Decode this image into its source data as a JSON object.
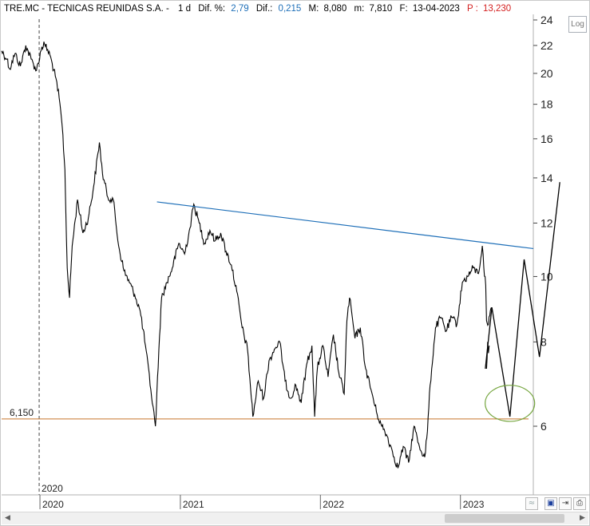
{
  "header": {
    "ticker": "TRE.MC - TECNICAS REUNIDAS S.A. -",
    "period": "1 d",
    "dif_pct_label": "Dif. %:",
    "dif_pct_value": "2,79",
    "dif_label": "Dif.:",
    "dif_value": "0,215",
    "max_label": "M:",
    "max_value": "8,080",
    "min_label": "m:",
    "min_value": "7,810",
    "date_label": "F:",
    "date_value": "13-04-2023",
    "price_label": "P :",
    "price_value": "13,230"
  },
  "toolbar": {
    "log_label": "Log"
  },
  "colors": {
    "price": "#000000",
    "trendline": "#1e6fb8",
    "support": "#c8742a",
    "ellipse": "#76a640",
    "accent_blue": "#1e6fb8",
    "accent_red": "#d42020"
  },
  "chart_data": {
    "type": "line",
    "y_scale": "log",
    "ylim": [
      5.0,
      24.5
    ],
    "y_ticks": [
      6,
      8,
      10,
      12,
      14,
      16,
      18,
      20,
      22,
      24
    ],
    "x_range": [
      "2019-09-23",
      "2023-07-10"
    ],
    "x_ticks": [
      "2020",
      "2021",
      "2022",
      "2023"
    ],
    "x_tick_dates": [
      "2020-01-01",
      "2021-01-01",
      "2022-01-01",
      "2023-01-01"
    ],
    "cursor_label": "2020",
    "support_level": {
      "value": 6.15,
      "label": "6,150"
    },
    "trendline": {
      "points": [
        [
          "2020-11-01",
          12.9
        ],
        [
          "2023-07-10",
          11.0
        ]
      ]
    },
    "projection": {
      "points": [
        [
          "2023-03-07",
          7.3
        ],
        [
          "2023-03-24",
          9.0
        ],
        [
          "2023-05-10",
          6.2
        ],
        [
          "2023-06-16",
          10.6
        ],
        [
          "2023-07-26",
          7.6
        ],
        [
          "2023-09-17",
          13.8
        ]
      ]
    },
    "target_zone": {
      "center": [
        "2023-05-10",
        6.5
      ],
      "price_low": 6.1,
      "price_high": 6.9
    },
    "series": [
      {
        "values": [
          [
            "2019-09-23",
            21.6
          ],
          [
            "2019-10-07",
            21.0
          ],
          [
            "2019-10-14",
            20.3
          ],
          [
            "2019-10-28",
            21.4
          ],
          [
            "2019-11-11",
            20.5
          ],
          [
            "2019-11-25",
            22.0
          ],
          [
            "2019-12-09",
            21.0
          ],
          [
            "2019-12-23",
            20.2
          ],
          [
            "2020-01-06",
            21.9
          ],
          [
            "2020-01-13",
            22.1
          ],
          [
            "2020-01-27",
            21.3
          ],
          [
            "2020-02-10",
            19.8
          ],
          [
            "2020-02-20",
            18.4
          ],
          [
            "2020-02-28",
            16.7
          ],
          [
            "2020-03-06",
            14.4
          ],
          [
            "2020-03-12",
            10.3
          ],
          [
            "2020-03-18",
            9.3
          ],
          [
            "2020-03-25",
            11.1
          ],
          [
            "2020-04-08",
            13.0
          ],
          [
            "2020-04-22",
            11.6
          ],
          [
            "2020-05-06",
            12.2
          ],
          [
            "2020-05-20",
            13.6
          ],
          [
            "2020-06-04",
            15.8
          ],
          [
            "2020-06-12",
            14.2
          ],
          [
            "2020-06-26",
            13.1
          ],
          [
            "2020-07-10",
            13.0
          ],
          [
            "2020-07-24",
            11.1
          ],
          [
            "2020-08-07",
            10.2
          ],
          [
            "2020-08-21",
            9.8
          ],
          [
            "2020-09-04",
            9.4
          ],
          [
            "2020-09-18",
            8.9
          ],
          [
            "2020-10-02",
            7.9
          ],
          [
            "2020-10-16",
            6.8
          ],
          [
            "2020-10-28",
            6.0
          ],
          [
            "2020-11-06",
            7.8
          ],
          [
            "2020-11-13",
            9.3
          ],
          [
            "2020-11-27",
            9.8
          ],
          [
            "2020-12-11",
            10.3
          ],
          [
            "2020-12-28",
            11.2
          ],
          [
            "2021-01-12",
            10.8
          ],
          [
            "2021-01-26",
            11.8
          ],
          [
            "2021-02-05",
            12.8
          ],
          [
            "2021-02-19",
            12.0
          ],
          [
            "2021-03-05",
            11.2
          ],
          [
            "2021-03-19",
            11.7
          ],
          [
            "2021-04-02",
            11.3
          ],
          [
            "2021-04-16",
            11.6
          ],
          [
            "2021-04-30",
            10.9
          ],
          [
            "2021-05-14",
            10.4
          ],
          [
            "2021-05-28",
            9.5
          ],
          [
            "2021-06-11",
            8.4
          ],
          [
            "2021-06-25",
            7.8
          ],
          [
            "2021-07-09",
            6.2
          ],
          [
            "2021-07-23",
            7.0
          ],
          [
            "2021-08-06",
            6.6
          ],
          [
            "2021-08-20",
            7.5
          ],
          [
            "2021-09-03",
            7.8
          ],
          [
            "2021-09-17",
            8.0
          ],
          [
            "2021-10-01",
            7.0
          ],
          [
            "2021-10-15",
            6.6
          ],
          [
            "2021-10-29",
            6.9
          ],
          [
            "2021-11-12",
            6.5
          ],
          [
            "2021-11-26",
            7.4
          ],
          [
            "2021-12-10",
            7.9
          ],
          [
            "2021-12-17",
            6.2
          ],
          [
            "2021-12-24",
            7.3
          ],
          [
            "2022-01-07",
            7.9
          ],
          [
            "2022-01-21",
            7.1
          ],
          [
            "2022-02-04",
            8.2
          ],
          [
            "2022-02-18",
            7.2
          ],
          [
            "2022-03-04",
            6.7
          ],
          [
            "2022-03-11",
            8.6
          ],
          [
            "2022-03-18",
            9.3
          ],
          [
            "2022-04-01",
            8.1
          ],
          [
            "2022-04-15",
            8.4
          ],
          [
            "2022-04-29",
            7.3
          ],
          [
            "2022-05-13",
            6.8
          ],
          [
            "2022-05-27",
            6.3
          ],
          [
            "2022-06-10",
            6.0
          ],
          [
            "2022-06-24",
            5.8
          ],
          [
            "2022-07-08",
            5.5
          ],
          [
            "2022-07-22",
            5.2
          ],
          [
            "2022-08-05",
            5.6
          ],
          [
            "2022-08-19",
            5.3
          ],
          [
            "2022-09-02",
            6.0
          ],
          [
            "2022-09-16",
            5.6
          ],
          [
            "2022-09-30",
            5.4
          ],
          [
            "2022-10-07",
            5.9
          ],
          [
            "2022-10-14",
            6.9
          ],
          [
            "2022-10-28",
            8.4
          ],
          [
            "2022-11-11",
            8.7
          ],
          [
            "2022-11-25",
            8.3
          ],
          [
            "2022-12-09",
            8.7
          ],
          [
            "2022-12-23",
            8.5
          ],
          [
            "2023-01-06",
            9.8
          ],
          [
            "2023-01-20",
            10.0
          ],
          [
            "2023-02-03",
            10.3
          ],
          [
            "2023-02-17",
            10.1
          ],
          [
            "2023-02-27",
            11.1
          ],
          [
            "2023-03-03",
            10.3
          ],
          [
            "2023-03-08",
            9.7
          ],
          [
            "2023-03-10",
            8.6
          ],
          [
            "2023-03-15",
            8.5
          ],
          [
            "2023-03-20",
            8.9
          ],
          [
            "2023-03-23",
            9.0
          ]
        ]
      },
      {
        "values": [
          [
            "2023-03-10",
            7.3
          ],
          [
            "2023-03-13",
            8.0
          ],
          [
            "2023-03-15",
            7.7
          ],
          [
            "2023-03-17",
            7.9
          ]
        ]
      }
    ]
  }
}
